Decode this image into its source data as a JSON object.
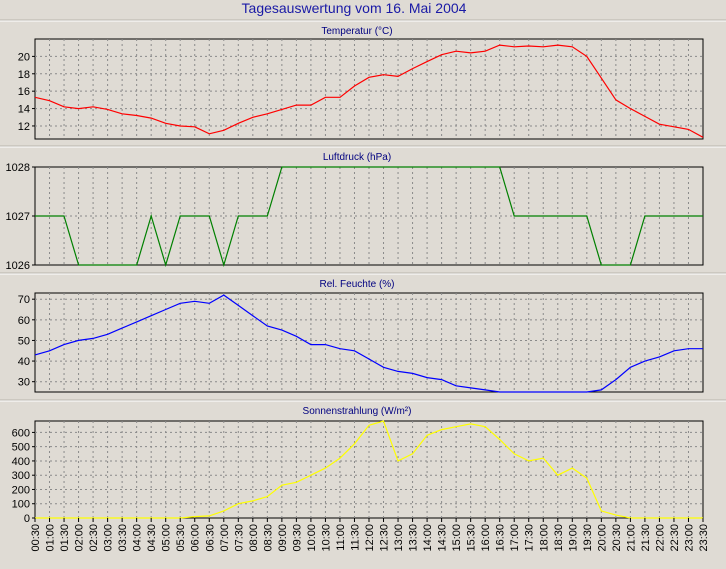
{
  "title": "Tagesauswertung vom 16. Mai 2004",
  "x_tick_labels": [
    "00:30",
    "01:00",
    "01:30",
    "02:00",
    "02:30",
    "03:00",
    "03:30",
    "04:00",
    "04:30",
    "05:00",
    "05:30",
    "06:00",
    "06:30",
    "07:00",
    "07:30",
    "08:00",
    "08:30",
    "09:00",
    "09:30",
    "10:00",
    "10:30",
    "11:00",
    "11:30",
    "12:00",
    "12:30",
    "13:00",
    "13:30",
    "14:00",
    "14:30",
    "15:00",
    "15:30",
    "16:00",
    "16:30",
    "17:00",
    "17:30",
    "18:00",
    "18:30",
    "19:00",
    "19:30",
    "20:00",
    "20:30",
    "21:00",
    "21:30",
    "22:00",
    "22:30",
    "23:00",
    "23:30"
  ],
  "chart_data": [
    {
      "type": "line",
      "title": "Temperatur (°C)",
      "color": "#ff0000",
      "ylim": [
        10.5,
        22
      ],
      "yticks": [
        12,
        14,
        16,
        18,
        20
      ],
      "grid": true,
      "series": [
        {
          "x": [
            "00:30",
            "01:00",
            "01:30",
            "02:00",
            "02:30",
            "03:00",
            "03:30",
            "04:00",
            "04:30",
            "05:00",
            "05:30",
            "06:00",
            "06:30",
            "07:00",
            "07:30",
            "08:00",
            "08:30",
            "09:00",
            "09:30",
            "10:00",
            "10:30",
            "11:00",
            "11:30",
            "12:00",
            "12:30",
            "13:00",
            "13:30",
            "14:00",
            "14:30",
            "15:00",
            "15:30",
            "16:00",
            "16:30",
            "17:00",
            "17:30",
            "18:00",
            "18:30",
            "19:00",
            "19:30",
            "20:00",
            "20:30",
            "21:00",
            "21:30",
            "22:00",
            "22:30",
            "23:00",
            "23:30"
          ],
          "values": [
            15.3,
            14.9,
            14.2,
            14.0,
            14.2,
            13.9,
            13.4,
            13.2,
            12.9,
            12.3,
            12.0,
            11.9,
            11.1,
            11.5,
            12.3,
            13.0,
            13.4,
            13.9,
            14.4,
            14.4,
            15.3,
            15.3,
            16.6,
            17.6,
            17.9,
            17.7,
            18.6,
            19.4,
            20.2,
            20.6,
            20.4,
            20.6,
            21.3,
            21.1,
            21.2,
            21.1,
            21.3,
            21.1,
            20.0,
            17.5,
            15.0,
            14.0,
            13.1,
            12.2,
            11.9,
            11.6,
            10.7
          ]
        }
      ]
    },
    {
      "type": "line",
      "title": "Luftdruck (hPa)",
      "color": "#008000",
      "ylim": [
        1026,
        1028
      ],
      "yticks": [
        1026,
        1027,
        1028
      ],
      "grid": true,
      "series": [
        {
          "x": [
            "00:30",
            "01:00",
            "01:30",
            "02:00",
            "02:30",
            "03:00",
            "03:30",
            "04:00",
            "04:30",
            "05:00",
            "05:30",
            "06:00",
            "06:30",
            "07:00",
            "07:30",
            "08:00",
            "08:30",
            "09:00",
            "09:30",
            "10:00",
            "10:30",
            "11:00",
            "11:30",
            "12:00",
            "12:30",
            "13:00",
            "13:30",
            "14:00",
            "14:30",
            "15:00",
            "15:30",
            "16:00",
            "16:30",
            "17:00",
            "17:30",
            "18:00",
            "18:30",
            "19:00",
            "19:30",
            "20:00",
            "20:30",
            "21:00",
            "21:30",
            "22:00",
            "22:30",
            "23:00",
            "23:30"
          ],
          "values": [
            1027,
            1027,
            1027,
            1026,
            1026,
            1026,
            1026,
            1026,
            1027,
            1026,
            1027,
            1027,
            1027,
            1026,
            1027,
            1027,
            1027,
            1028,
            1028,
            1028,
            1028,
            1028,
            1028,
            1028,
            1028,
            1028,
            1028,
            1028,
            1028,
            1028,
            1028,
            1028,
            1028,
            1027,
            1027,
            1027,
            1027,
            1027,
            1027,
            1026,
            1026,
            1026,
            1027,
            1027,
            1027,
            1027,
            1027
          ]
        }
      ]
    },
    {
      "type": "line",
      "title": "Rel. Feuchte (%)",
      "color": "#0000ff",
      "ylim": [
        25,
        73
      ],
      "yticks": [
        30,
        40,
        50,
        60,
        70
      ],
      "grid": true,
      "series": [
        {
          "x": [
            "00:30",
            "01:00",
            "01:30",
            "02:00",
            "02:30",
            "03:00",
            "03:30",
            "04:00",
            "04:30",
            "05:00",
            "05:30",
            "06:00",
            "06:30",
            "07:00",
            "07:30",
            "08:00",
            "08:30",
            "09:00",
            "09:30",
            "10:00",
            "10:30",
            "11:00",
            "11:30",
            "12:00",
            "12:30",
            "13:00",
            "13:30",
            "14:00",
            "14:30",
            "15:00",
            "15:30",
            "16:00",
            "16:30",
            "17:00",
            "17:30",
            "18:00",
            "18:30",
            "19:00",
            "19:30",
            "20:00",
            "20:30",
            "21:00",
            "21:30",
            "22:00",
            "22:30",
            "23:00",
            "23:30"
          ],
          "values": [
            43,
            45,
            48,
            50,
            51,
            53,
            56,
            59,
            62,
            65,
            68,
            69,
            68,
            72,
            67,
            62,
            57,
            55,
            52,
            48,
            48,
            46,
            45,
            41,
            37,
            35,
            34,
            32,
            31,
            28,
            27,
            26,
            25,
            25,
            25,
            25,
            25,
            25,
            25,
            26,
            31,
            37,
            40,
            42,
            45,
            46,
            46
          ]
        }
      ]
    },
    {
      "type": "line",
      "title": "Sonnenstrahlung (W/m²)",
      "color": "#ffff00",
      "ylim": [
        0,
        680
      ],
      "yticks": [
        0,
        100,
        200,
        300,
        400,
        500,
        600
      ],
      "grid": true,
      "series": [
        {
          "x": [
            "00:30",
            "01:00",
            "01:30",
            "02:00",
            "02:30",
            "03:00",
            "03:30",
            "04:00",
            "04:30",
            "05:00",
            "05:30",
            "06:00",
            "06:30",
            "07:00",
            "07:30",
            "08:00",
            "08:30",
            "09:00",
            "09:30",
            "10:00",
            "10:30",
            "11:00",
            "11:30",
            "12:00",
            "12:30",
            "13:00",
            "13:30",
            "14:00",
            "14:30",
            "15:00",
            "15:30",
            "16:00",
            "16:30",
            "17:00",
            "17:30",
            "18:00",
            "18:30",
            "19:00",
            "19:30",
            "20:00",
            "20:30",
            "21:00",
            "21:30",
            "22:00",
            "22:30",
            "23:00",
            "23:30"
          ],
          "values": [
            0,
            0,
            0,
            0,
            0,
            0,
            0,
            0,
            0,
            0,
            0,
            10,
            15,
            50,
            100,
            120,
            150,
            230,
            250,
            300,
            350,
            420,
            520,
            650,
            700,
            400,
            450,
            580,
            620,
            640,
            660,
            640,
            550,
            450,
            400,
            420,
            300,
            350,
            280,
            50,
            20,
            0,
            0,
            0,
            0,
            0,
            0
          ]
        }
      ]
    }
  ]
}
